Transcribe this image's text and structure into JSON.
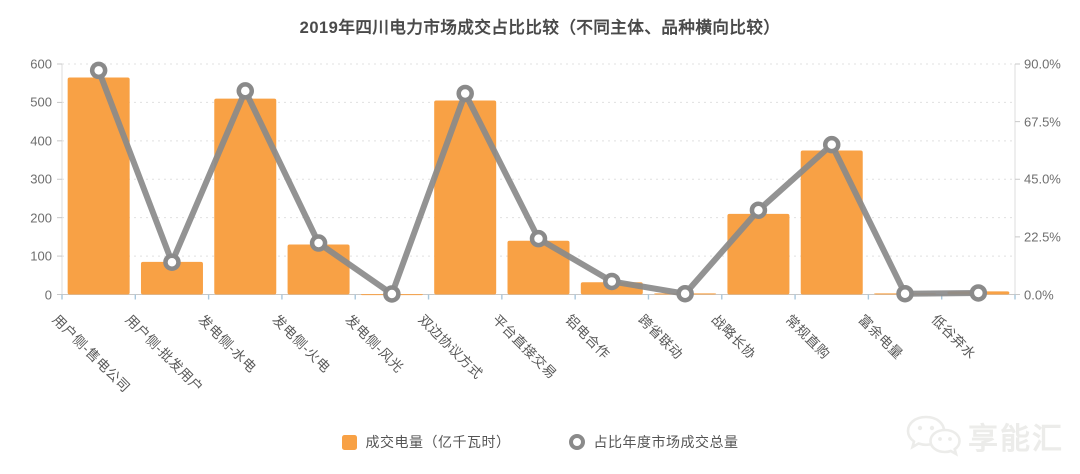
{
  "title": "2019年四川电力市场成交占比比较（不同主体、品种横向比较）",
  "legend": {
    "bar_label": "成交电量（亿千瓦时）",
    "line_label": "占比年度市场成交总量"
  },
  "watermark_text": "享能汇",
  "colors": {
    "bar": "#F8A145",
    "line": "#8A8A8A",
    "marker_fill": "#FFFFFF",
    "grid": "#E0E0E0",
    "axis_line": "#DCDCDC",
    "baseline": "#C8C8C8",
    "x_tick": "#A9C7DC",
    "title_text": "#4A4A4A",
    "axis_text": "#6E6E6E"
  },
  "chart_data": {
    "type": "bar",
    "subtype": "bar+line dual axis",
    "title": "2019年四川电力市场成交占比比较（不同主体、品种横向比较）",
    "categories": [
      "用户侧-售电公司",
      "用户侧-批发用户",
      "发电侧-水电",
      "发电侧-火电",
      "发电侧-风光",
      "双边协议方式",
      "平台直接交易",
      "铝电合作",
      "跨省联动",
      "战略长协",
      "常规直购",
      "富余电量",
      "低谷弃水"
    ],
    "series": [
      {
        "name": "成交电量（亿千瓦时）",
        "type": "bar",
        "axis": "left",
        "values": [
          565,
          85,
          510,
          130,
          1,
          505,
          140,
          32,
          3,
          210,
          375,
          3,
          8
        ]
      },
      {
        "name": "占比年度市场成交总量",
        "type": "line",
        "axis": "right",
        "values": [
          87.5,
          12.6,
          79.5,
          20.1,
          0.2,
          78.5,
          21.8,
          5.1,
          0.3,
          32.9,
          58.5,
          0.3,
          0.6
        ]
      }
    ],
    "left_axis": {
      "label": "",
      "ticks": [
        0,
        100,
        200,
        300,
        400,
        500,
        600
      ],
      "min": 0,
      "max": 600
    },
    "right_axis": {
      "label": "",
      "ticks": [
        "0.0%",
        "22.5%",
        "45.0%",
        "67.5%",
        "90.0%"
      ],
      "min": 0,
      "max": 90,
      "unit": "%"
    },
    "grid": true,
    "legend_position": "bottom"
  }
}
